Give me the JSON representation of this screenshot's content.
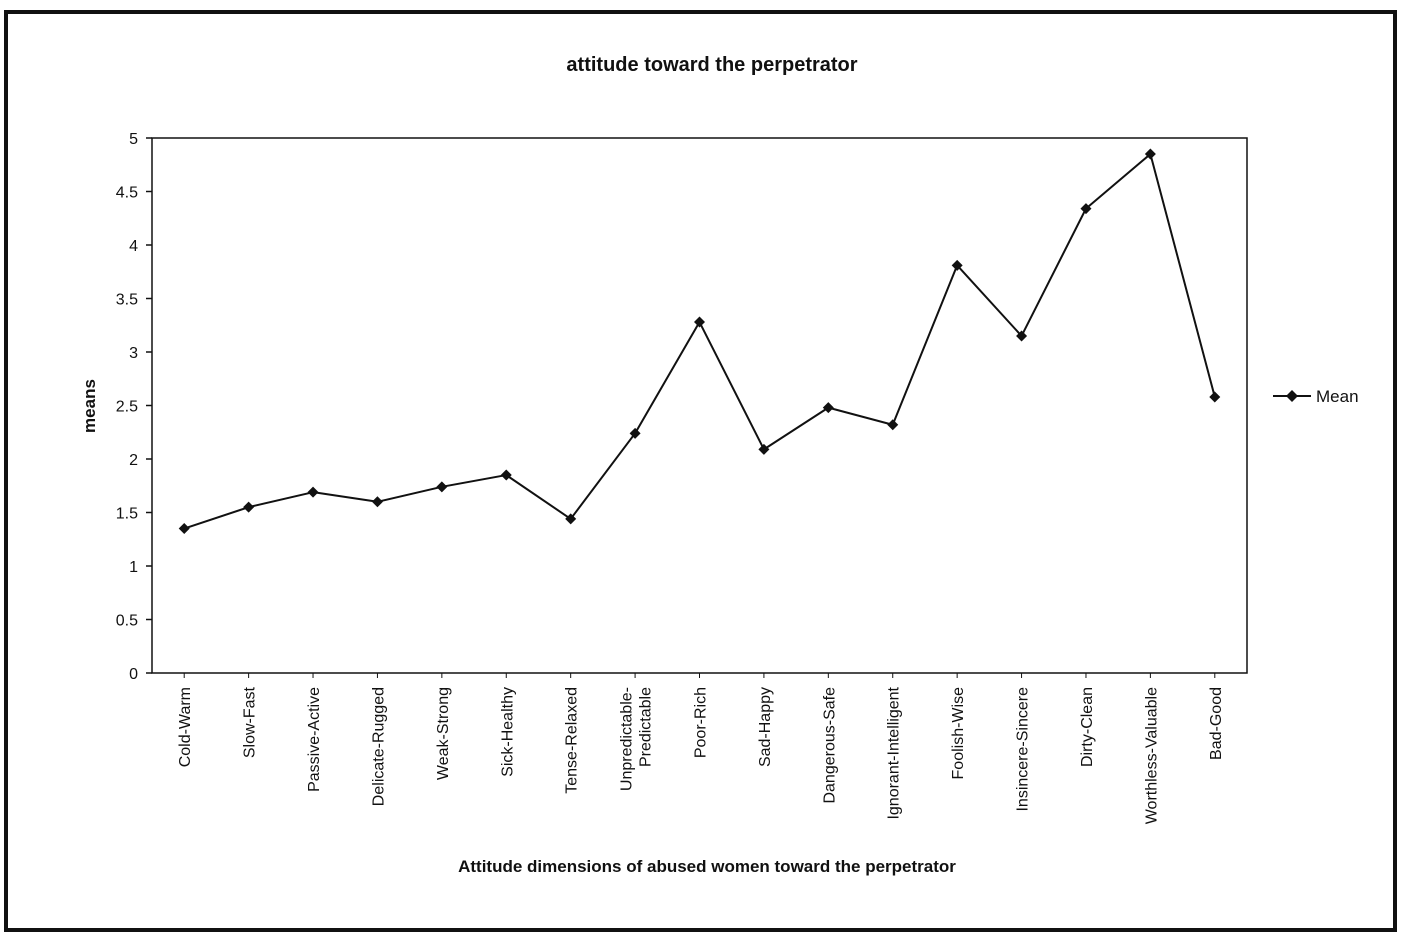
{
  "chart_data": {
    "type": "line",
    "title": "attitude toward the perpetrator",
    "xlabel": "Attitude dimensions of abused women toward the perpetrator",
    "ylabel": "means",
    "ylim": [
      0,
      5
    ],
    "yticks": [
      "0",
      "0.5",
      "1",
      "1.5",
      "2",
      "2.5",
      "3",
      "3.5",
      "4",
      "4.5",
      "5"
    ],
    "categories": [
      [
        "Cold-Warm"
      ],
      [
        "Slow-Fast"
      ],
      [
        "Passive-Active"
      ],
      [
        "Delicate-Rugged"
      ],
      [
        "Weak-Strong"
      ],
      [
        "Sick-Healthy"
      ],
      [
        "Tense-Relaxed"
      ],
      [
        "Unpredictable-",
        "Predictable"
      ],
      [
        "Poor-Rich"
      ],
      [
        "Sad-Happy"
      ],
      [
        "Dangerous-Safe"
      ],
      [
        "Ignorant-Intelligent"
      ],
      [
        "Foolish-Wise"
      ],
      [
        "Insincere-Sincere"
      ],
      [
        "Dirty-Clean"
      ],
      [
        "Worthless-Valuable"
      ],
      [
        "Bad-Good"
      ]
    ],
    "series": [
      {
        "name": "Mean",
        "values": [
          1.35,
          1.55,
          1.69,
          1.6,
          1.74,
          1.85,
          1.44,
          2.24,
          3.28,
          2.09,
          2.48,
          2.32,
          3.81,
          3.15,
          4.34,
          4.85,
          2.58
        ],
        "color": "#111111",
        "marker": "diamond"
      }
    ],
    "legend_position": "right",
    "grid": false
  }
}
